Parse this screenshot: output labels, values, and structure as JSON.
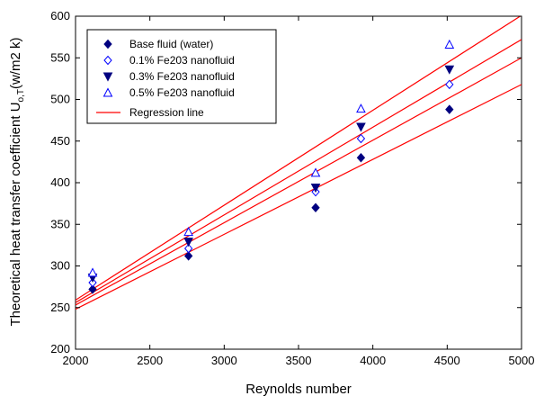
{
  "chart_data": {
    "type": "scatter",
    "xlabel": "Reynolds number",
    "ylabel": {
      "prefix": "Theoretical heat transfer coefficient U",
      "subscript": "o,T",
      "suffix": "(w/m2 k)"
    },
    "xlim": [
      2000,
      5000
    ],
    "ylim": [
      200,
      600
    ],
    "x_ticks": [
      2000,
      2500,
      3000,
      3500,
      4000,
      4500,
      5000
    ],
    "y_ticks": [
      200,
      250,
      300,
      350,
      400,
      450,
      500,
      550,
      600
    ],
    "grid": false,
    "legend_position": "top-left",
    "x": [
      2115,
      2760,
      3615,
      3920,
      4515
    ],
    "series": [
      {
        "name": "Base fluid (water)",
        "marker": "filled-diamond",
        "color": "#000080",
        "values": [
          272,
          312,
          370,
          430,
          488
        ],
        "regression": {
          "start": [
            2000,
            248
          ],
          "end": [
            5000,
            518
          ]
        }
      },
      {
        "name": "0.1% Fe203 nanofluid",
        "marker": "open-diamond",
        "color": "#0000ff",
        "values": [
          280,
          321,
          389,
          453,
          518
        ],
        "regression": {
          "start": [
            2000,
            253
          ],
          "end": [
            5000,
            550
          ]
        }
      },
      {
        "name": "0.3% Fe203 nanofluid",
        "marker": "filled-triangle-down",
        "color": "#000080",
        "values": [
          286,
          329,
          394,
          467,
          536
        ],
        "regression": {
          "start": [
            2000,
            256
          ],
          "end": [
            5000,
            572
          ]
        }
      },
      {
        "name": "0.5% Fe203 nanofluid",
        "marker": "open-triangle-up",
        "color": "#0000ff",
        "values": [
          292,
          341,
          412,
          489,
          566
        ],
        "regression": {
          "start": [
            2000,
            259
          ],
          "end": [
            5000,
            601
          ]
        }
      }
    ],
    "regression_legend": {
      "name": "Regression line",
      "color": "#ff0000"
    }
  }
}
